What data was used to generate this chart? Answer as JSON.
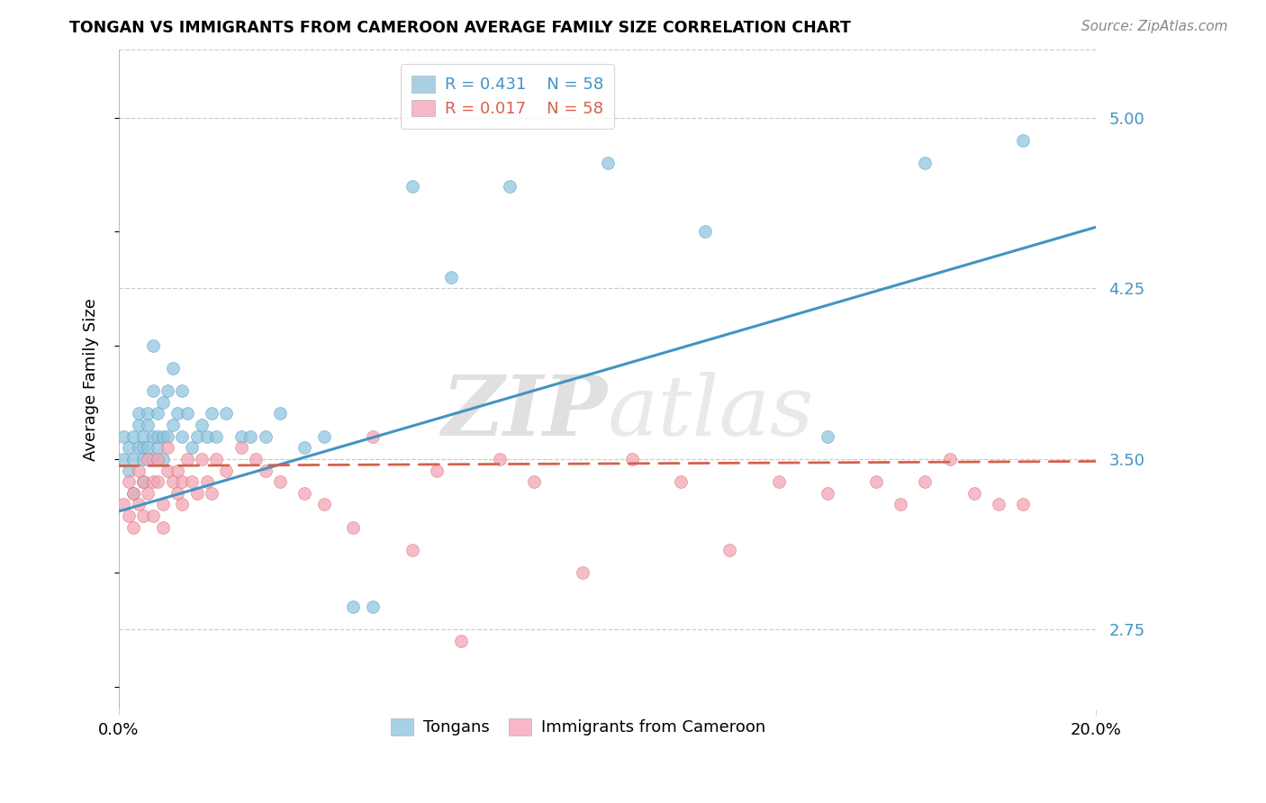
{
  "title": "TONGAN VS IMMIGRANTS FROM CAMEROON AVERAGE FAMILY SIZE CORRELATION CHART",
  "source": "Source: ZipAtlas.com",
  "ylabel": "Average Family Size",
  "yticks": [
    2.75,
    3.5,
    4.25,
    5.0
  ],
  "ylim": [
    2.4,
    5.3
  ],
  "xlim": [
    0.0,
    0.2
  ],
  "legend_blue_r": "R = 0.431",
  "legend_blue_n": "N = 58",
  "legend_pink_r": "R = 0.017",
  "legend_pink_n": "N = 58",
  "blue_color": "#92c5de",
  "pink_color": "#f4a5b8",
  "line_blue": "#4393c3",
  "line_pink": "#d6604d",
  "watermark_zip": "ZIP",
  "watermark_atlas": "atlas",
  "tongan_x": [
    0.001,
    0.001,
    0.002,
    0.002,
    0.003,
    0.003,
    0.003,
    0.004,
    0.004,
    0.004,
    0.005,
    0.005,
    0.005,
    0.005,
    0.006,
    0.006,
    0.006,
    0.007,
    0.007,
    0.007,
    0.007,
    0.008,
    0.008,
    0.008,
    0.009,
    0.009,
    0.009,
    0.01,
    0.01,
    0.011,
    0.011,
    0.012,
    0.013,
    0.013,
    0.014,
    0.015,
    0.016,
    0.017,
    0.018,
    0.019,
    0.02,
    0.022,
    0.025,
    0.027,
    0.03,
    0.033,
    0.038,
    0.042,
    0.048,
    0.052,
    0.06,
    0.068,
    0.08,
    0.1,
    0.12,
    0.145,
    0.165,
    0.185
  ],
  "tongan_y": [
    3.5,
    3.6,
    3.55,
    3.45,
    3.6,
    3.5,
    3.35,
    3.55,
    3.65,
    3.7,
    3.5,
    3.6,
    3.55,
    3.4,
    3.65,
    3.55,
    3.7,
    3.5,
    3.6,
    3.8,
    4.0,
    3.55,
    3.6,
    3.7,
    3.5,
    3.6,
    3.75,
    3.6,
    3.8,
    3.65,
    3.9,
    3.7,
    3.6,
    3.8,
    3.7,
    3.55,
    3.6,
    3.65,
    3.6,
    3.7,
    3.6,
    3.7,
    3.6,
    3.6,
    3.6,
    3.7,
    3.55,
    3.6,
    2.85,
    2.85,
    4.7,
    4.3,
    4.7,
    4.8,
    4.5,
    3.6,
    4.8,
    4.9
  ],
  "cameroon_x": [
    0.001,
    0.002,
    0.002,
    0.003,
    0.003,
    0.004,
    0.004,
    0.005,
    0.005,
    0.006,
    0.006,
    0.007,
    0.007,
    0.008,
    0.008,
    0.009,
    0.009,
    0.01,
    0.01,
    0.011,
    0.012,
    0.012,
    0.013,
    0.013,
    0.014,
    0.015,
    0.016,
    0.017,
    0.018,
    0.019,
    0.02,
    0.022,
    0.025,
    0.028,
    0.03,
    0.033,
    0.038,
    0.042,
    0.048,
    0.052,
    0.06,
    0.065,
    0.07,
    0.078,
    0.085,
    0.095,
    0.105,
    0.115,
    0.125,
    0.135,
    0.145,
    0.155,
    0.16,
    0.165,
    0.17,
    0.175,
    0.18,
    0.185
  ],
  "cameroon_y": [
    3.3,
    3.25,
    3.4,
    3.35,
    3.2,
    3.45,
    3.3,
    3.4,
    3.25,
    3.35,
    3.5,
    3.4,
    3.25,
    3.5,
    3.4,
    3.3,
    3.2,
    3.45,
    3.55,
    3.4,
    3.35,
    3.45,
    3.4,
    3.3,
    3.5,
    3.4,
    3.35,
    3.5,
    3.4,
    3.35,
    3.5,
    3.45,
    3.55,
    3.5,
    3.45,
    3.4,
    3.35,
    3.3,
    3.2,
    3.6,
    3.1,
    3.45,
    2.7,
    3.5,
    3.4,
    3.0,
    3.5,
    3.4,
    3.1,
    3.4,
    3.35,
    3.4,
    3.3,
    3.4,
    3.5,
    3.35,
    3.3,
    3.3
  ],
  "blue_line_x": [
    0.0,
    0.2
  ],
  "blue_line_y": [
    3.27,
    4.52
  ],
  "pink_line_x": [
    0.0,
    0.2
  ],
  "pink_line_y": [
    3.47,
    3.49
  ]
}
